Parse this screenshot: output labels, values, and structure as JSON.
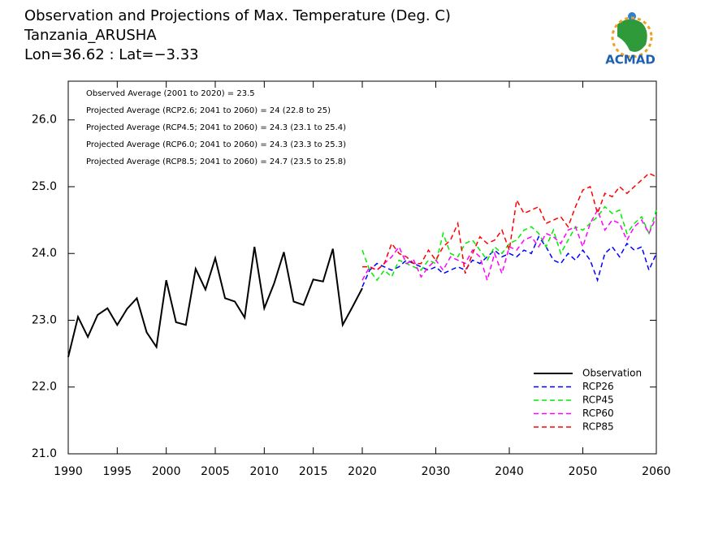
{
  "chart_data": {
    "type": "line",
    "title": [
      "Observation and Projections of Max. Temperature (Deg. C)",
      "Tanzania_ARUSHA",
      "Lon=36.62 : Lat=−3.33"
    ],
    "annotations": [
      "Observed Average (2001 to 2020) = 23.5",
      "Projected Average (RCP2.6; 2041 to 2060) = 24 (22.8 to 25)",
      "Projected Average (RCP4.5; 2041 to 2060) = 24.3 (23.1 to 25.4)",
      "Projected Average (RCP6.0; 2041 to 2060) = 24.3 (23.3 to 25.3)",
      "Projected Average (RCP8.5; 2041 to 2060) = 24.7 (23.5 to 25.8)"
    ],
    "logo": "ACMAD",
    "xlim": [
      1990,
      2060
    ],
    "xticks": [
      1990,
      1995,
      2000,
      2005,
      2010,
      2015,
      2020,
      2030,
      2040,
      2050,
      2060
    ],
    "ylim": [
      21,
      26.58
    ],
    "yticks": [
      {
        "value": 21,
        "label": "21.0"
      },
      {
        "value": 22,
        "label": "22.0"
      },
      {
        "value": 23,
        "label": "23.0"
      },
      {
        "value": 24,
        "label": "24.0"
      },
      {
        "value": 25,
        "label": "25.0"
      },
      {
        "value": 26,
        "label": "26.0"
      }
    ],
    "legend": "lower right",
    "series": [
      {
        "name": "Observation",
        "color": "#000000",
        "dash": false,
        "x": [
          1990,
          1991,
          1992,
          1993,
          1994,
          1995,
          1996,
          1997,
          1998,
          1999,
          2000,
          2001,
          2002,
          2003,
          2004,
          2005,
          2006,
          2007,
          2008,
          2009,
          2010,
          2011,
          2012,
          2013,
          2014,
          2015,
          2016,
          2017,
          2018,
          2019,
          2020
        ],
        "values": [
          22.45,
          23.05,
          22.75,
          23.08,
          23.18,
          22.93,
          23.17,
          23.33,
          22.82,
          22.6,
          23.6,
          22.97,
          22.93,
          23.77,
          23.46,
          23.93,
          23.33,
          23.28,
          23.04,
          24.1,
          23.18,
          23.55,
          24.02,
          23.28,
          23.23,
          23.61,
          23.58,
          24.07,
          22.93,
          23.2,
          23.48
        ]
      },
      {
        "name": "RCP26",
        "color": "#0000ff",
        "dash": true,
        "x": [
          2020,
          2021,
          2022,
          2023,
          2024,
          2025,
          2026,
          2027,
          2028,
          2029,
          2030,
          2031,
          2032,
          2033,
          2034,
          2035,
          2036,
          2037,
          2038,
          2039,
          2040,
          2041,
          2042,
          2043,
          2044,
          2045,
          2046,
          2047,
          2048,
          2049,
          2050,
          2051,
          2052,
          2053,
          2054,
          2055,
          2056,
          2057,
          2058,
          2059,
          2060
        ],
        "values": [
          23.5,
          23.75,
          23.85,
          23.8,
          23.75,
          23.8,
          23.9,
          23.85,
          23.8,
          23.75,
          23.8,
          23.7,
          23.75,
          23.8,
          23.75,
          23.9,
          23.85,
          23.95,
          24.05,
          23.95,
          24.0,
          23.95,
          24.05,
          24.0,
          24.25,
          24.1,
          23.9,
          23.85,
          24.0,
          23.9,
          24.05,
          23.9,
          23.6,
          24.0,
          24.1,
          23.95,
          24.15,
          24.05,
          24.1,
          23.75,
          24.0
        ]
      },
      {
        "name": "RCP45",
        "color": "#00ee00",
        "dash": true,
        "x": [
          2020,
          2021,
          2022,
          2023,
          2024,
          2025,
          2026,
          2027,
          2028,
          2029,
          2030,
          2031,
          2032,
          2033,
          2034,
          2035,
          2036,
          2037,
          2038,
          2039,
          2040,
          2041,
          2042,
          2043,
          2044,
          2045,
          2046,
          2047,
          2048,
          2049,
          2050,
          2051,
          2052,
          2053,
          2054,
          2055,
          2056,
          2057,
          2058,
          2059,
          2060
        ],
        "values": [
          24.05,
          23.75,
          23.6,
          23.75,
          23.65,
          23.9,
          23.85,
          23.8,
          23.75,
          23.9,
          23.85,
          24.3,
          24.0,
          23.95,
          24.15,
          24.2,
          24.05,
          23.9,
          24.1,
          24.0,
          24.15,
          24.2,
          24.35,
          24.4,
          24.3,
          24.1,
          24.35,
          24.0,
          24.2,
          24.4,
          24.35,
          24.45,
          24.55,
          24.7,
          24.6,
          24.65,
          24.3,
          24.45,
          24.55,
          24.3,
          24.65
        ]
      },
      {
        "name": "RCP60",
        "color": "#ff00ff",
        "dash": true,
        "x": [
          2020,
          2021,
          2022,
          2023,
          2024,
          2025,
          2026,
          2027,
          2028,
          2029,
          2030,
          2031,
          2032,
          2033,
          2034,
          2035,
          2036,
          2037,
          2038,
          2039,
          2040,
          2041,
          2042,
          2043,
          2044,
          2045,
          2046,
          2047,
          2048,
          2049,
          2050,
          2051,
          2052,
          2053,
          2054,
          2055,
          2056,
          2057,
          2058,
          2059,
          2060
        ],
        "values": [
          23.6,
          23.8,
          23.75,
          23.85,
          23.95,
          24.1,
          23.85,
          23.9,
          23.65,
          23.8,
          23.9,
          23.75,
          23.95,
          23.9,
          23.85,
          24.05,
          23.95,
          23.6,
          24.0,
          23.7,
          24.1,
          24.05,
          24.2,
          24.25,
          24.1,
          24.3,
          24.25,
          24.15,
          24.35,
          24.4,
          24.1,
          24.45,
          24.65,
          24.35,
          24.5,
          24.45,
          24.2,
          24.4,
          24.5,
          24.3,
          24.55
        ]
      },
      {
        "name": "RCP85",
        "color": "#ff0000",
        "dash": true,
        "x": [
          2020,
          2021,
          2022,
          2023,
          2024,
          2025,
          2026,
          2027,
          2028,
          2029,
          2030,
          2031,
          2032,
          2033,
          2034,
          2035,
          2036,
          2037,
          2038,
          2039,
          2040,
          2041,
          2042,
          2043,
          2044,
          2045,
          2046,
          2047,
          2048,
          2049,
          2050,
          2051,
          2052,
          2053,
          2054,
          2055,
          2056,
          2057,
          2058,
          2059,
          2060
        ],
        "values": [
          23.8,
          23.8,
          23.75,
          23.85,
          24.15,
          24.0,
          23.95,
          23.85,
          23.85,
          24.05,
          23.9,
          24.1,
          24.2,
          24.45,
          23.7,
          24.0,
          24.25,
          24.15,
          24.2,
          24.35,
          24.05,
          24.8,
          24.6,
          24.65,
          24.7,
          24.45,
          24.5,
          24.55,
          24.4,
          24.7,
          24.95,
          25.0,
          24.6,
          24.9,
          24.85,
          25.0,
          24.9,
          25.0,
          25.1,
          25.2,
          25.15
        ]
      }
    ]
  }
}
